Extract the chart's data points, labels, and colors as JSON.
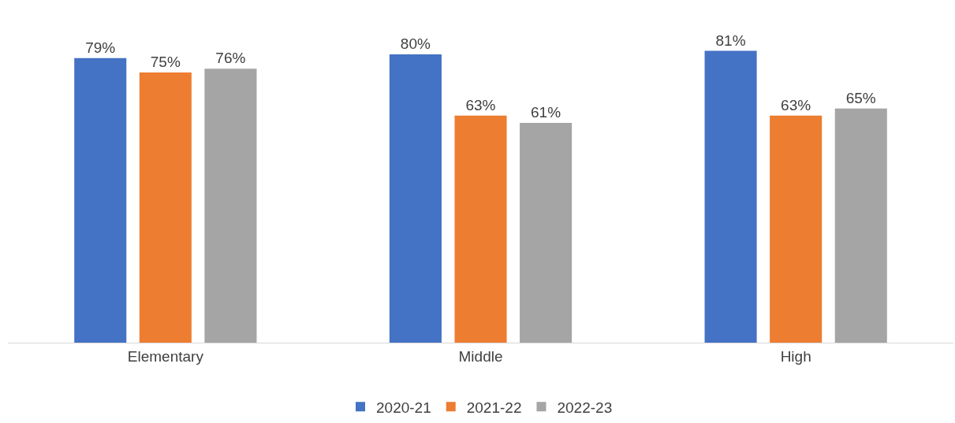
{
  "chart_data": {
    "type": "bar",
    "categories": [
      "Elementary",
      "Middle",
      "High"
    ],
    "series": [
      {
        "name": "2020-21",
        "color": "#4472c4",
        "values": [
          79,
          80,
          81
        ],
        "value_labels": [
          "79%",
          "80%",
          "81%"
        ]
      },
      {
        "name": "2021-22",
        "color": "#ed7d31",
        "values": [
          75,
          63,
          63
        ],
        "value_labels": [
          "75%",
          "63%",
          "63%"
        ]
      },
      {
        "name": "2022-23",
        "color": "#a5a5a5",
        "values": [
          76,
          61,
          65
        ],
        "value_labels": [
          "76%",
          "61%",
          "65%"
        ]
      }
    ],
    "grid": false,
    "legend": "bottom"
  }
}
